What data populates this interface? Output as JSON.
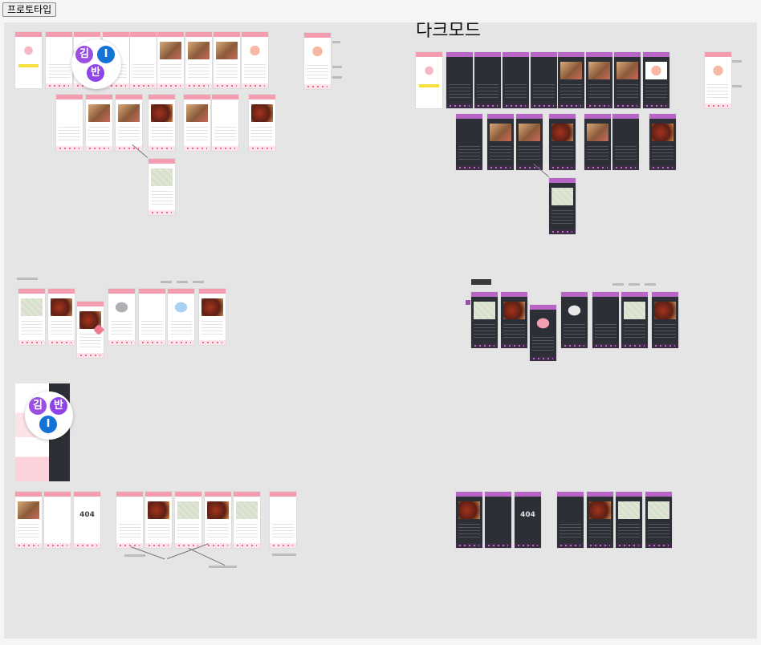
{
  "toolbar": {
    "prototype_button": "프로토타입"
  },
  "canvas": {
    "dark_mode_title": "다크모드"
  },
  "logo": {
    "letters": [
      "김",
      "I",
      "반"
    ],
    "colors": [
      "#9b4fe0",
      "#1573d6",
      "#8e44e8"
    ]
  },
  "screens": {
    "not_found_text": "404"
  },
  "colors": {
    "light_header": "#f49cb0",
    "dark_header": "#b766c5",
    "dark_bg": "#2c2f36",
    "canvas_bg": "#e5e5e5"
  }
}
